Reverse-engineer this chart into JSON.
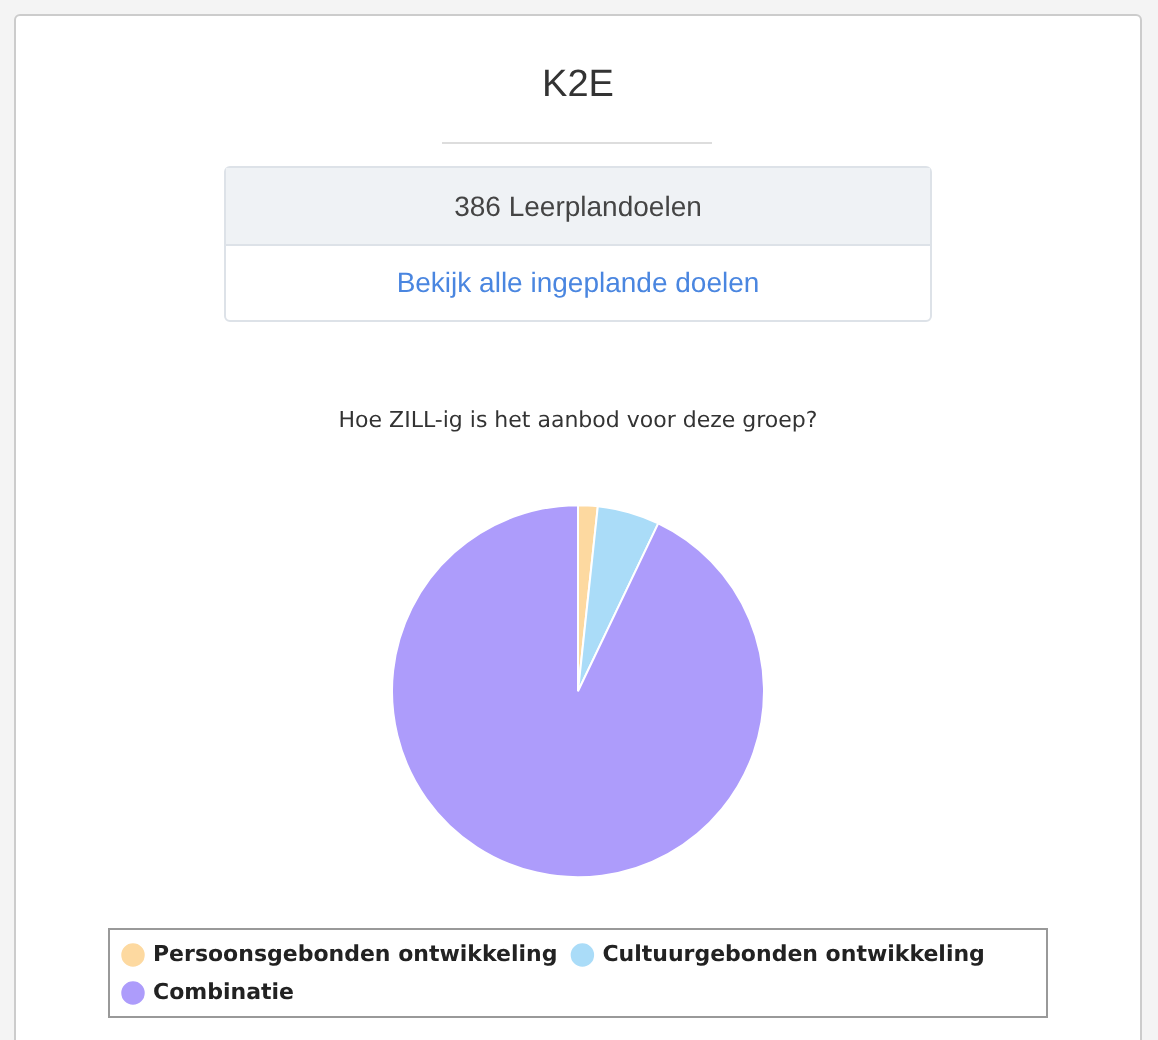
{
  "chart_data": {
    "type": "pie",
    "title": "Hoe ZILL-ig is het aanbod voor deze groep?",
    "annotations": [
      "K2E",
      "386 Leerplandoelen",
      "Bekijk alle ingeplande doelen"
    ],
    "categories": [
      "Persoonsgebonden ontwikkeling",
      "Cultuurgebonden ontwikkeling",
      "Combinatie"
    ],
    "values": [
      1.7,
      5.4,
      92.9
    ],
    "colors": [
      "#fdd9a0",
      "#aadcf8",
      "#ad9cfb"
    ],
    "legend": "bottom"
  }
}
